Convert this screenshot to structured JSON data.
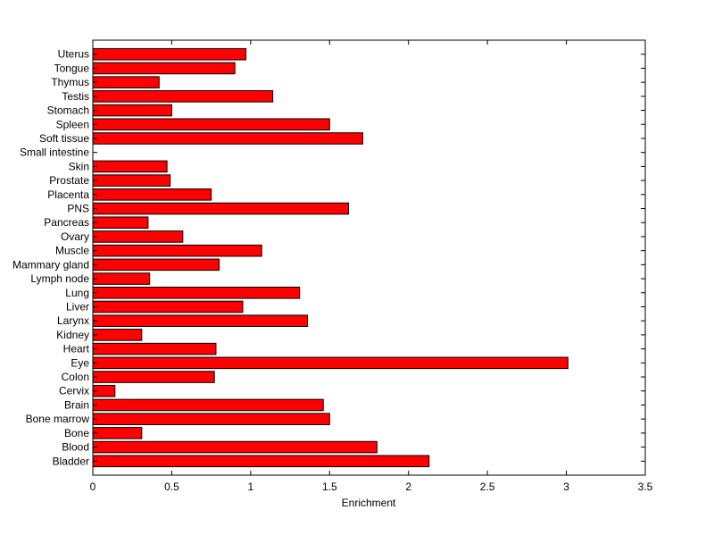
{
  "chart_data": {
    "type": "bar",
    "orientation": "horizontal",
    "categories": [
      "Bladder",
      "Blood",
      "Bone",
      "Bone marrow",
      "Brain",
      "Cervix",
      "Colon",
      "Eye",
      "Heart",
      "Kidney",
      "Larynx",
      "Liver",
      "Lung",
      "Lymph node",
      "Mammary gland",
      "Muscle",
      "Ovary",
      "Pancreas",
      "PNS",
      "Placenta",
      "Prostate",
      "Skin",
      "Small intestine",
      "Soft tissue",
      "Spleen",
      "Stomach",
      "Testis",
      "Thymus",
      "Tongue",
      "Uterus"
    ],
    "values": [
      2.13,
      1.8,
      0.31,
      1.5,
      1.46,
      0.14,
      0.77,
      3.01,
      0.78,
      0.31,
      1.36,
      0.95,
      1.31,
      0.36,
      0.8,
      1.07,
      0.57,
      0.35,
      1.62,
      0.75,
      0.49,
      0.47,
      0.0,
      1.71,
      1.5,
      0.5,
      1.14,
      0.42,
      0.9,
      0.97
    ],
    "xlabel": "Enrichment",
    "ylabel": "",
    "title": "",
    "xlim": [
      0,
      3.5
    ],
    "xticks": [
      0,
      0.5,
      1,
      1.5,
      2,
      2.5,
      3,
      3.5
    ],
    "xtick_labels": [
      "0",
      "0.5",
      "1",
      "1.5",
      "2",
      "2.5",
      "3",
      "3.5"
    ],
    "grid": false,
    "bar_color": "#ff0000",
    "edge_color": "#000000"
  }
}
